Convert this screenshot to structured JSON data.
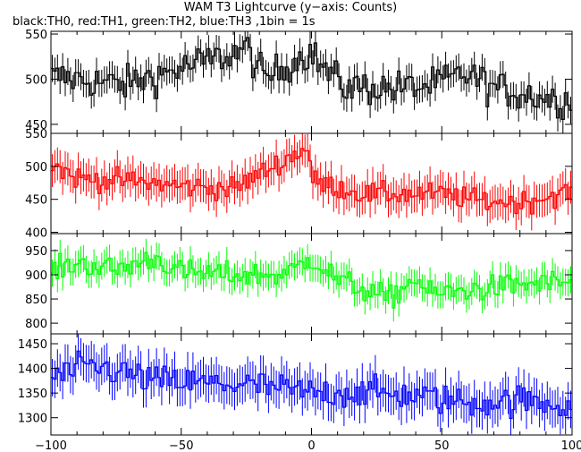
{
  "chart_data": {
    "type": "line",
    "title": "WAM T3 Lightcurve (y−axis: Counts)",
    "subtitle": "black:TH0, red:TH1, green:TH2, blue:TH3 ,1bin = 1s",
    "x_range": [
      -100,
      100
    ],
    "x_ticks": [
      -100,
      -50,
      0,
      50,
      100
    ],
    "bin_seconds": 1,
    "panels": [
      {
        "series": "TH0",
        "color": "#000000",
        "ylim": [
          440,
          553
        ],
        "yticks": [
          450,
          500,
          550
        ],
        "mean": 492,
        "jitter": 14,
        "error": 15,
        "features": [
          [
            -96,
            502
          ],
          [
            -72,
            494
          ],
          [
            -28,
            530
          ],
          [
            -25,
            535
          ],
          [
            -18,
            500
          ],
          [
            0,
            532
          ],
          [
            2,
            520
          ],
          [
            12,
            492
          ],
          [
            30,
            490
          ],
          [
            45,
            492
          ],
          [
            60,
            506
          ],
          [
            70,
            490
          ],
          [
            85,
            482
          ],
          [
            98,
            476
          ]
        ]
      },
      {
        "series": "TH1",
        "color": "#ff0000",
        "ylim": [
          398,
          550
        ],
        "yticks": [
          400,
          450,
          500,
          550
        ],
        "mean": 470,
        "jitter": 12,
        "error": 25,
        "features": [
          [
            -100,
            505
          ],
          [
            -90,
            482
          ],
          [
            -70,
            478
          ],
          [
            -50,
            470
          ],
          [
            -30,
            466
          ],
          [
            0,
            478
          ],
          [
            -1,
            530
          ],
          [
            20,
            458
          ],
          [
            50,
            458
          ],
          [
            65,
            448
          ],
          [
            80,
            445
          ],
          [
            100,
            462
          ]
        ]
      },
      {
        "series": "TH2",
        "color": "#00ff00",
        "ylim": [
          778,
          985
        ],
        "yticks": [
          800,
          850,
          900,
          950
        ],
        "mean": 895,
        "jitter": 18,
        "error": 28,
        "features": [
          [
            -100,
            905
          ],
          [
            -90,
            925
          ],
          [
            -75,
            910
          ],
          [
            -60,
            935
          ],
          [
            -50,
            905
          ],
          [
            -30,
            900
          ],
          [
            -10,
            900
          ],
          [
            0,
            935
          ],
          [
            10,
            890
          ],
          [
            30,
            850
          ],
          [
            40,
            895
          ],
          [
            45,
            860
          ],
          [
            60,
            868
          ],
          [
            80,
            880
          ],
          [
            100,
            885
          ]
        ]
      },
      {
        "series": "TH3",
        "color": "#0000ff",
        "ylim": [
          1265,
          1470
        ],
        "yticks": [
          1300,
          1350,
          1400,
          1450
        ],
        "mean": 1360,
        "jitter": 22,
        "error": 38,
        "features": [
          [
            -100,
            1380
          ],
          [
            -85,
            1405
          ],
          [
            -75,
            1395
          ],
          [
            -60,
            1375
          ],
          [
            -40,
            1370
          ],
          [
            -20,
            1365
          ],
          [
            0,
            1350
          ],
          [
            20,
            1352
          ],
          [
            40,
            1345
          ],
          [
            60,
            1330
          ],
          [
            80,
            1335
          ],
          [
            100,
            1325
          ]
        ]
      }
    ]
  }
}
